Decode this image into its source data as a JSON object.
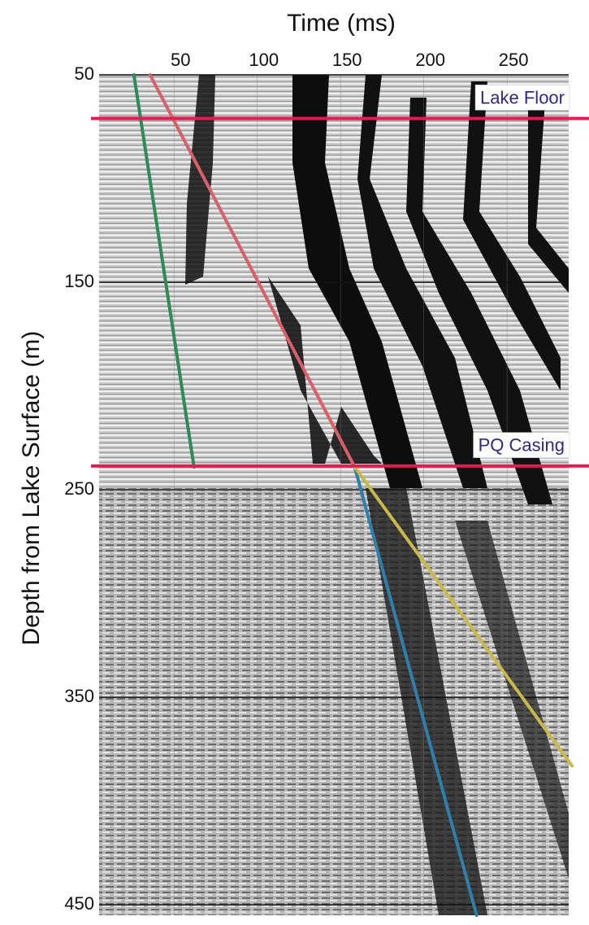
{
  "chart_data": {
    "type": "line",
    "x_label": "Time (ms)",
    "y_label": "Depth from Lake Surface (m)",
    "xlim": [
      5,
      287
    ],
    "xticks": [
      50,
      100,
      150,
      200,
      250
    ],
    "ylim": [
      50,
      455
    ],
    "yticks": [
      50,
      150,
      250,
      350,
      450
    ],
    "y_inverted": true,
    "grid": true,
    "series": [
      {
        "color": "#2e8b57",
        "x": [
          25.9,
          62
        ],
        "values": [
          50,
          239
        ]
      },
      {
        "color": "#d9606a",
        "x": [
          35.6,
          158.5
        ],
        "values": [
          50,
          239
        ]
      },
      {
        "color": "#2f7fa8",
        "x": [
          158.5,
          231.7
        ],
        "values": [
          239,
          455
        ]
      },
      {
        "color": "#c9b84a",
        "x": [
          158.5,
          289
        ],
        "values": [
          239,
          383
        ]
      }
    ],
    "annotations": [
      {
        "text": "Lake Floor",
        "y": 71
      },
      {
        "text": "PQ Casing",
        "y": 238.5
      }
    ],
    "annotation_color": "#d9204f"
  }
}
